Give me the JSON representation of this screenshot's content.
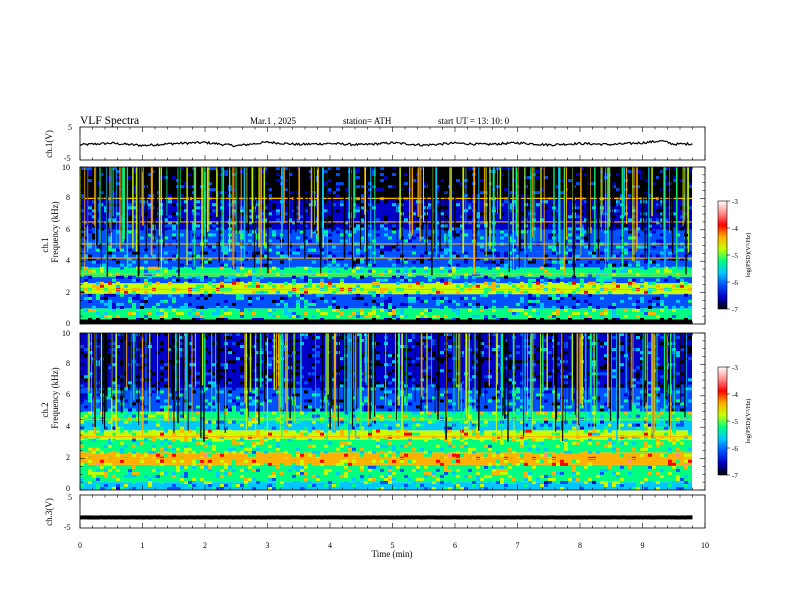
{
  "header": {
    "title": "VLF  Spectra",
    "date": "Mar.1  , 2025",
    "station": "station= ATH",
    "start": "start  UT  =   13: 10: 0"
  },
  "colorbar": {
    "label": "log(PSD)(V²/Hz)",
    "ticks": [
      "-3",
      "-4",
      "-5",
      "-6",
      "-7"
    ],
    "range": [
      -7,
      -3
    ],
    "colors": [
      "#000000",
      "#0000c8",
      "#0050ff",
      "#00c8ff",
      "#00ff80",
      "#c8ff00",
      "#ffb000",
      "#ff0000",
      "#ff9090",
      "#ffffff"
    ]
  },
  "chart_data": [
    {
      "type": "line",
      "ylabel": "ch.1(V)",
      "ylim": [
        -5,
        5
      ],
      "yticks": [
        "5",
        "-5"
      ],
      "xlim": [
        0,
        10
      ],
      "series": [
        {
          "x": [
            0,
            0.5,
            1,
            1.5,
            2,
            2.5,
            3,
            3.5,
            4,
            4.5,
            5,
            5.5,
            6,
            6.5,
            7,
            7.5,
            8,
            8.5,
            9,
            9.3,
            9.5,
            9.8
          ],
          "values": [
            -0.4,
            0.1,
            -0.6,
            0.0,
            0.3,
            -0.7,
            0.4,
            -0.3,
            0.0,
            -0.4,
            0.2,
            -0.5,
            0.1,
            -0.3,
            0.2,
            -0.4,
            0.0,
            -0.3,
            0.2,
            0.8,
            -0.2,
            -0.1
          ]
        }
      ]
    },
    {
      "type": "heatmap",
      "ylabel_top": "ch.1",
      "ylabel": "Frequency (kHz)",
      "ylim": [
        0,
        10
      ],
      "yticks": [
        "0",
        "2",
        "4",
        "6",
        "8",
        "10"
      ],
      "xlim": [
        0,
        10
      ],
      "dominant_bands_khz": [
        2.2,
        3.2,
        4.2,
        5.1,
        6.5,
        8.0
      ],
      "bands": [
        {
          "f0": 0.0,
          "f1": 0.3,
          "level": -7.0
        },
        {
          "f0": 0.3,
          "f1": 1.0,
          "level": -5.2
        },
        {
          "f0": 1.0,
          "f1": 1.9,
          "level": -6.0
        },
        {
          "f0": 1.9,
          "f1": 2.6,
          "level": -4.9
        },
        {
          "f0": 2.6,
          "f1": 3.0,
          "level": -5.9
        },
        {
          "f0": 3.0,
          "f1": 3.6,
          "level": -5.3
        },
        {
          "f0": 3.6,
          "f1": 4.6,
          "level": -6.1
        },
        {
          "f0": 4.6,
          "f1": 6.0,
          "level": -6.0
        },
        {
          "f0": 6.0,
          "f1": 8.0,
          "level": -6.3
        },
        {
          "f0": 8.0,
          "f1": 10.0,
          "level": -6.7
        }
      ]
    },
    {
      "type": "heatmap",
      "ylabel_top": "ch.2",
      "ylabel": "Frequency (kHz)",
      "ylim": [
        0,
        10
      ],
      "yticks": [
        "0",
        "2",
        "4",
        "6",
        "8",
        "10"
      ],
      "xlim": [
        0,
        10
      ],
      "dominant_bands_khz": [
        2.0,
        3.4,
        4.5
      ],
      "bands": [
        {
          "f0": 0.0,
          "f1": 0.5,
          "level": -5.5
        },
        {
          "f0": 0.5,
          "f1": 1.6,
          "level": -5.2
        },
        {
          "f0": 1.6,
          "f1": 2.4,
          "level": -4.6
        },
        {
          "f0": 2.4,
          "f1": 3.2,
          "level": -5.1
        },
        {
          "f0": 3.2,
          "f1": 3.8,
          "level": -4.9
        },
        {
          "f0": 3.8,
          "f1": 4.4,
          "level": -5.6
        },
        {
          "f0": 4.4,
          "f1": 5.0,
          "level": -5.2
        },
        {
          "f0": 5.0,
          "f1": 6.5,
          "level": -6.0
        },
        {
          "f0": 6.5,
          "f1": 10.0,
          "level": -6.5
        }
      ]
    },
    {
      "type": "line",
      "ylabel": "ch.3(V)",
      "ylim": [
        -5,
        5
      ],
      "yticks": [
        "5",
        "-5"
      ],
      "xlim": [
        0,
        10
      ],
      "xlabel": "Time  (min)",
      "xticks": [
        "0",
        "1",
        "2",
        "3",
        "4",
        "5",
        "6",
        "7",
        "8",
        "9",
        "10"
      ],
      "series": [
        {
          "x": [
            0,
            9.8
          ],
          "values": [
            -1.8,
            -1.8
          ]
        }
      ]
    }
  ]
}
